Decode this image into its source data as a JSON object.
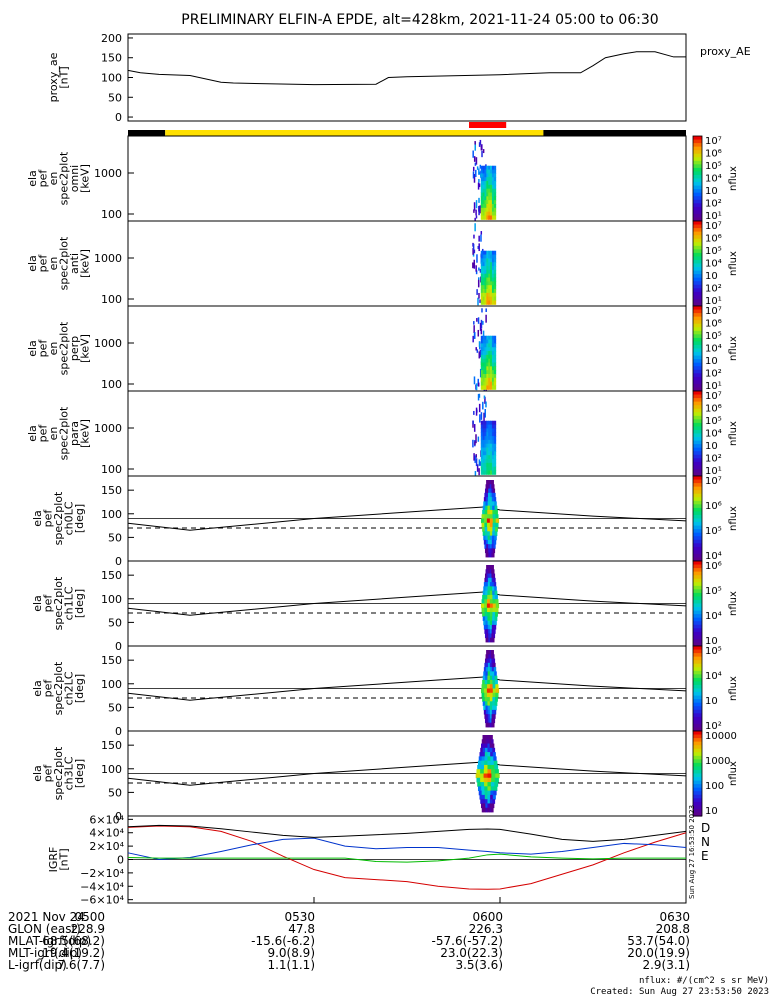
{
  "title": "PRELIMINARY ELFIN-A EPDE, alt=428km, 2021-11-24 05:00 to 06:30",
  "colors": {
    "orbit_black": "#000000",
    "orbit_yellow": "#ffe000",
    "science_red": "#ff0000",
    "igrf_D": "#d40000",
    "igrf_N": "#0033cc",
    "igrf_E": "#00bb00",
    "igrf_total": "#000000"
  },
  "chart_data": [
    {
      "id": "proxy_ae",
      "type": "line",
      "ylabel": "proxy_ae\n[nT]",
      "legend": "proxy_AE",
      "ylim": [
        -10,
        210
      ],
      "yticks": [
        "0",
        "50",
        "100",
        "150",
        "200"
      ],
      "xlim": [
        0,
        90
      ],
      "series": [
        {
          "name": "proxy_AE",
          "x": [
            0,
            2,
            5,
            10,
            15,
            17,
            30,
            40,
            42,
            45,
            60,
            68,
            70,
            73,
            75,
            77,
            80,
            82,
            85,
            88,
            90
          ],
          "y": [
            118,
            112,
            108,
            105,
            88,
            86,
            82,
            83,
            100,
            102,
            107,
            112,
            112,
            112,
            130,
            150,
            160,
            165,
            165,
            152,
            152
          ]
        }
      ]
    },
    {
      "id": "spec_omni",
      "type": "heatmap",
      "ylabel": "ela\npef\nen\nspec2plot\nomni\n[keV]",
      "yscale": "log",
      "yticks": [
        "1000",
        "100"
      ],
      "colorbar": {
        "label": "nflux",
        "ticks": [
          "10⁷",
          "10⁶",
          "10⁵",
          "10⁴",
          "10⁳",
          "10²",
          "10¹"
        ]
      },
      "event_x": [
        55.5,
        59.5
      ]
    },
    {
      "id": "spec_anti",
      "type": "heatmap",
      "ylabel": "ela\npef\nen\nspec2plot\nanti\n[keV]",
      "yscale": "log",
      "yticks": [
        "1000",
        "100"
      ],
      "colorbar": {
        "label": "nflux",
        "ticks": [
          "10⁷",
          "10⁶",
          "10⁵",
          "10⁴",
          "10⁳",
          "10²",
          "10¹"
        ]
      },
      "event_x": [
        55.5,
        59.5
      ]
    },
    {
      "id": "spec_perp",
      "type": "heatmap",
      "ylabel": "ela\npef\nen\nspec2plot\nperp\n[keV]",
      "yscale": "log",
      "yticks": [
        "1000",
        "100"
      ],
      "colorbar": {
        "label": "nflux",
        "ticks": [
          "10⁷",
          "10⁶",
          "10⁵",
          "10⁴",
          "10⁳",
          "10²",
          "10¹"
        ]
      },
      "event_x": [
        55.5,
        59.5
      ]
    },
    {
      "id": "spec_para",
      "type": "heatmap",
      "ylabel": "ela\npef\nen\nspec2plot\npara\n[keV]",
      "yscale": "log",
      "yticks": [
        "1000",
        "100"
      ],
      "colorbar": {
        "label": "nflux",
        "ticks": [
          "10⁷",
          "10⁶",
          "10⁵",
          "10⁴",
          "10⁳",
          "10²",
          "10¹"
        ]
      },
      "event_x": [
        55.5,
        59.5
      ]
    },
    {
      "id": "pa_ch0",
      "type": "heatmap",
      "ylabel": "ela\npef\nspec2plot\nch0LC\n[deg]",
      "ylim": [
        0,
        180
      ],
      "yticks": [
        "150",
        "100",
        "50",
        "0"
      ],
      "colorbar": {
        "label": "nflux",
        "ticks": [
          "10⁷",
          "10⁶",
          "10⁵",
          "10⁴"
        ]
      },
      "event_x": [
        56.5,
        59.5
      ],
      "loss_cone": {
        "x": [
          0,
          10,
          30,
          50,
          58,
          60,
          75,
          90
        ],
        "y": [
          80,
          65,
          90,
          108,
          115,
          108,
          95,
          85
        ]
      },
      "dashed": {
        "x": [
          0,
          90
        ],
        "y": [
          70,
          70
        ]
      }
    },
    {
      "id": "pa_ch1",
      "type": "heatmap",
      "ylabel": "ela\npef\nspec2plot\nch1LC\n[deg]",
      "ylim": [
        0,
        180
      ],
      "yticks": [
        "150",
        "100",
        "50",
        "0"
      ],
      "colorbar": {
        "label": "nflux",
        "ticks": [
          "10⁶",
          "10⁵",
          "10⁴",
          "10⁳"
        ]
      },
      "event_x": [
        56.5,
        59.5
      ],
      "loss_cone": {
        "x": [
          0,
          10,
          30,
          50,
          58,
          60,
          75,
          90
        ],
        "y": [
          80,
          65,
          90,
          108,
          115,
          108,
          95,
          85
        ]
      },
      "dashed": {
        "x": [
          0,
          90
        ],
        "y": [
          70,
          70
        ]
      }
    },
    {
      "id": "pa_ch2",
      "type": "heatmap",
      "ylabel": "ela\npef\nspec2plot\nch2LC\n[deg]",
      "ylim": [
        0,
        180
      ],
      "yticks": [
        "150",
        "100",
        "50",
        "0"
      ],
      "colorbar": {
        "label": "nflux",
        "ticks": [
          "10⁵",
          "10⁴",
          "10⁳",
          "10²"
        ]
      },
      "event_x": [
        56.5,
        59.5
      ],
      "loss_cone": {
        "x": [
          0,
          10,
          30,
          50,
          58,
          60,
          75,
          90
        ],
        "y": [
          80,
          65,
          90,
          108,
          115,
          108,
          95,
          85
        ]
      },
      "dashed": {
        "x": [
          0,
          90
        ],
        "y": [
          70,
          70
        ]
      }
    },
    {
      "id": "pa_ch3",
      "type": "heatmap",
      "ylabel": "ela\npef\nspec2plot\nch3LC\n[deg]",
      "ylim": [
        0,
        180
      ],
      "yticks": [
        "150",
        "100",
        "50",
        "0"
      ],
      "colorbar": {
        "label": "nflux",
        "ticks": [
          "10000",
          "1000",
          "100",
          "10"
        ]
      },
      "event_x": [
        55.5,
        59.5
      ],
      "loss_cone": {
        "x": [
          0,
          10,
          30,
          50,
          58,
          60,
          75,
          90
        ],
        "y": [
          80,
          65,
          90,
          108,
          115,
          108,
          95,
          85
        ]
      },
      "dashed": {
        "x": [
          0,
          90
        ],
        "y": [
          70,
          70
        ]
      }
    },
    {
      "id": "igrf",
      "type": "line",
      "ylabel": "IGRF\n[nT]",
      "ylim": [
        -65000,
        65000
      ],
      "yticks": [
        "6×10⁴",
        "4×10⁴",
        "2×10⁴",
        "0",
        "−2×10⁴",
        "−4×10⁴",
        "−6×10⁴"
      ],
      "legend": [
        "D",
        "N",
        "E"
      ],
      "series": [
        {
          "name": "D",
          "x": [
            0,
            5,
            10,
            15,
            20,
            25,
            30,
            35,
            40,
            45,
            50,
            55,
            58,
            60,
            65,
            70,
            75,
            80,
            85,
            90
          ],
          "y": [
            48000,
            50000,
            49000,
            42000,
            27000,
            5000,
            -15000,
            -27000,
            -30000,
            -33000,
            -40000,
            -44000,
            -44500,
            -44000,
            -36000,
            -22000,
            -8000,
            10000,
            26000,
            40000
          ]
        },
        {
          "name": "N",
          "x": [
            0,
            5,
            10,
            15,
            20,
            25,
            30,
            35,
            40,
            45,
            50,
            55,
            58,
            60,
            65,
            70,
            75,
            80,
            85,
            90
          ],
          "y": [
            10000,
            0,
            3000,
            12000,
            22000,
            30000,
            32000,
            20000,
            16000,
            18000,
            18000,
            14000,
            12000,
            10000,
            8000,
            12000,
            18000,
            24000,
            22000,
            18000
          ]
        },
        {
          "name": "E",
          "x": [
            0,
            5,
            10,
            15,
            20,
            25,
            30,
            35,
            40,
            45,
            50,
            55,
            58,
            60,
            65,
            70,
            75,
            80,
            85,
            90
          ],
          "y": [
            3000,
            2000,
            2000,
            2000,
            2000,
            2000,
            2000,
            2000,
            -3000,
            -4000,
            -2000,
            2000,
            7000,
            8000,
            4000,
            2000,
            1000,
            2000,
            2000,
            2000
          ]
        },
        {
          "name": "total",
          "x": [
            0,
            5,
            10,
            15,
            20,
            25,
            30,
            35,
            40,
            45,
            50,
            55,
            58,
            60,
            65,
            70,
            75,
            80,
            85,
            90
          ],
          "y": [
            49000,
            51000,
            50000,
            46000,
            41000,
            36000,
            33000,
            35000,
            37000,
            39000,
            42000,
            45000,
            45500,
            45000,
            38000,
            30000,
            27000,
            30000,
            36000,
            42000
          ]
        }
      ]
    }
  ],
  "x_axis": {
    "ticks": [
      {
        "x": 0,
        "label": "0500"
      },
      {
        "x": 30,
        "label": "0530"
      },
      {
        "x": 60,
        "label": "0600"
      },
      {
        "x": 90,
        "label": "0630"
      }
    ]
  },
  "orbit_bar": {
    "segments": [
      {
        "x0": 0,
        "x1": 6,
        "c": "black"
      },
      {
        "x0": 6,
        "x1": 67,
        "c": "yellow"
      },
      {
        "x0": 67,
        "x1": 90,
        "c": "black"
      }
    ],
    "science_zone": [
      55,
      61
    ]
  },
  "footer": {
    "rows": [
      {
        "label": "2021 Nov 24",
        "values": [
          "0500",
          "0530",
          "0600",
          "0630"
        ]
      },
      {
        "label": "GLON (east)",
        "values": [
          "228.9",
          "47.8",
          "226.3",
          "208.8"
        ]
      },
      {
        "label": "MLAT-igrf(dip)",
        "values": [
          "68.5(68.2)",
          "-15.6(-6.2)",
          "-57.6(-57.2)",
          "53.7(54.0)"
        ]
      },
      {
        "label": "MLT-igrf(dip)",
        "values": [
          "19.4(19.2)",
          "9.0(8.9)",
          "23.0(22.3)",
          "20.0(19.9)"
        ]
      },
      {
        "label": "L-igrf(dip)",
        "values": [
          "7.6(7.7)",
          "1.1(1.1)",
          "3.5(3.6)",
          "2.9(3.1)"
        ]
      }
    ],
    "unit_note": "nflux: #/(cm^2 s sr MeV)",
    "created": "Created: Sun Aug 27 23:53:50 2023",
    "side_stamp": "Sun Aug 27 16:53:50 2023"
  }
}
